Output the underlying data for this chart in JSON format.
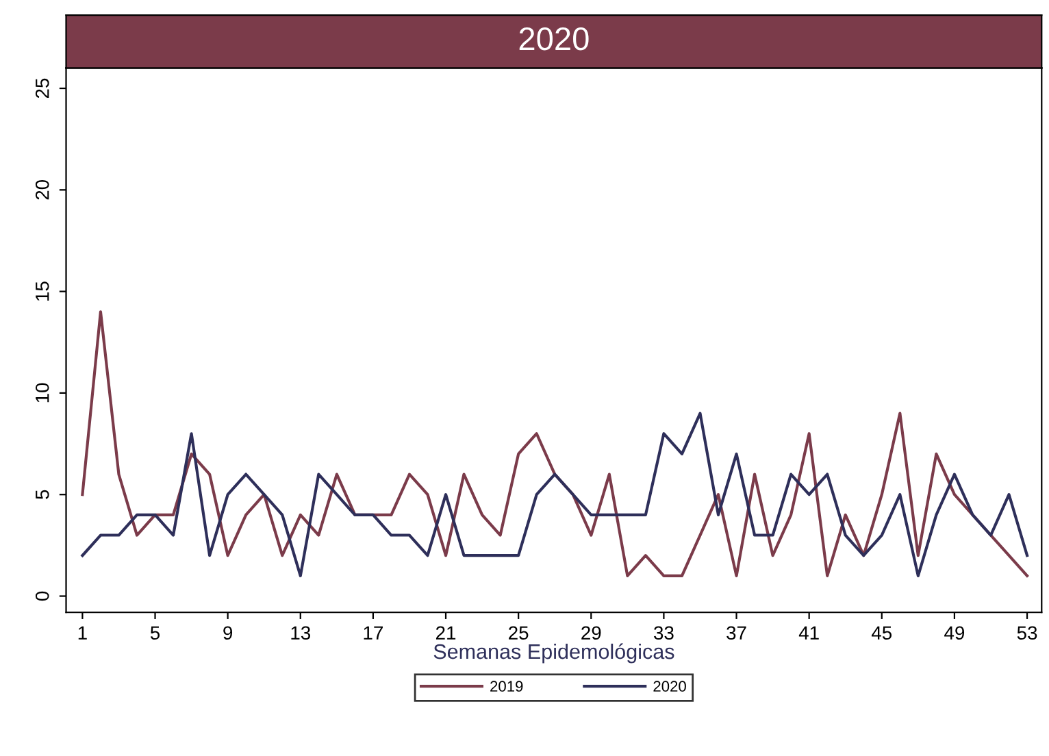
{
  "chart_data": {
    "type": "line",
    "title": "2020",
    "xlabel": "Semanas Epidemológicas",
    "x": [
      1,
      2,
      3,
      4,
      5,
      6,
      7,
      8,
      9,
      10,
      11,
      12,
      13,
      14,
      15,
      16,
      17,
      18,
      19,
      20,
      21,
      22,
      23,
      24,
      25,
      26,
      27,
      28,
      29,
      30,
      31,
      32,
      33,
      34,
      35,
      36,
      37,
      38,
      39,
      40,
      41,
      42,
      43,
      44,
      45,
      46,
      47,
      48,
      49,
      50,
      51,
      52,
      53
    ],
    "series": [
      {
        "name": "2019",
        "color": "#7b3b4a",
        "values": [
          5,
          14,
          6,
          3,
          4,
          4,
          7,
          6,
          2,
          4,
          5,
          2,
          4,
          3,
          6,
          4,
          4,
          4,
          6,
          5,
          2,
          6,
          4,
          3,
          7,
          8,
          6,
          5,
          3,
          6,
          1,
          2,
          1,
          1,
          3,
          5,
          1,
          6,
          2,
          4,
          8,
          1,
          4,
          2,
          5,
          9,
          2,
          7,
          5,
          4,
          3,
          2,
          1
        ]
      },
      {
        "name": "2020",
        "color": "#2e2f5a",
        "values": [
          2,
          3,
          3,
          4,
          4,
          3,
          8,
          2,
          5,
          6,
          5,
          4,
          1,
          6,
          5,
          4,
          4,
          3,
          3,
          2,
          5,
          2,
          2,
          2,
          2,
          5,
          6,
          5,
          4,
          4,
          4,
          4,
          8,
          7,
          9,
          4,
          7,
          3,
          3,
          6,
          5,
          6,
          3,
          2,
          3,
          5,
          1,
          4,
          6,
          4,
          3,
          5,
          2
        ]
      }
    ],
    "xlim": [
      0.1,
      53.8
    ],
    "xticks": [
      1,
      5,
      9,
      13,
      17,
      21,
      25,
      29,
      33,
      37,
      41,
      45,
      49,
      53
    ],
    "ylim": [
      -0.8,
      26
    ],
    "yticks": [
      0,
      5,
      10,
      15,
      20,
      25
    ],
    "grid": false,
    "legend": "bottom",
    "marker": "none",
    "line_style": "solid"
  }
}
